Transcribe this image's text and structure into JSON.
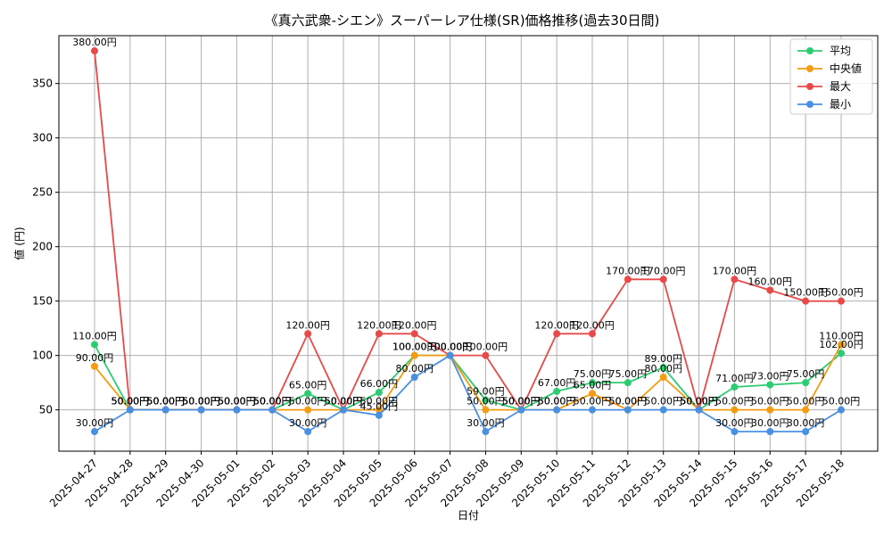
{
  "chart_data": {
    "type": "line",
    "title": "《真六武衆-シエン》スーパーレア仕様(SR)価格推移(過去30日間)",
    "xlabel": "日付",
    "ylabel": "値 (円)",
    "ylim": [
      12,
      394
    ],
    "yticks": [
      50,
      100,
      150,
      200,
      250,
      300,
      350
    ],
    "grid": true,
    "legend_position": "top-right",
    "categories": [
      "2025-04-27",
      "2025-04-28",
      "2025-04-29",
      "2025-04-30",
      "2025-05-01",
      "2025-05-02",
      "2025-05-03",
      "2025-05-04",
      "2025-05-05",
      "2025-05-06",
      "2025-05-07",
      "2025-05-08",
      "2025-05-09",
      "2025-05-10",
      "2025-05-11",
      "2025-05-12",
      "2025-05-13",
      "2025-05-14",
      "2025-05-15",
      "2025-05-16",
      "2025-05-17",
      "2025-05-18"
    ],
    "label_suffix": "円",
    "series": [
      {
        "name": "平均",
        "color": "#2ecc71",
        "values": [
          110,
          50,
          50,
          50,
          50,
          50,
          65,
          50,
          66,
          100,
          100,
          59,
          50,
          67,
          75,
          75,
          89,
          50,
          71,
          73,
          75,
          102
        ]
      },
      {
        "name": "中央値",
        "color": "#f39c12",
        "values": [
          90,
          50,
          50,
          50,
          50,
          50,
          50,
          50,
          50,
          100,
          100,
          50,
          50,
          50,
          65,
          50,
          80,
          50,
          50,
          50,
          50,
          110
        ]
      },
      {
        "name": "最大",
        "color": "#e84a4a",
        "values": [
          380,
          50,
          50,
          50,
          50,
          50,
          120,
          50,
          120,
          120,
          100,
          100,
          50,
          120,
          120,
          170,
          170,
          50,
          170,
          160,
          150,
          150
        ]
      },
      {
        "name": "最小",
        "color": "#4a90e2",
        "values": [
          30,
          50,
          50,
          50,
          50,
          50,
          30,
          50,
          45,
          80,
          100,
          30,
          50,
          50,
          50,
          50,
          50,
          50,
          30,
          30,
          30,
          50
        ]
      }
    ]
  }
}
